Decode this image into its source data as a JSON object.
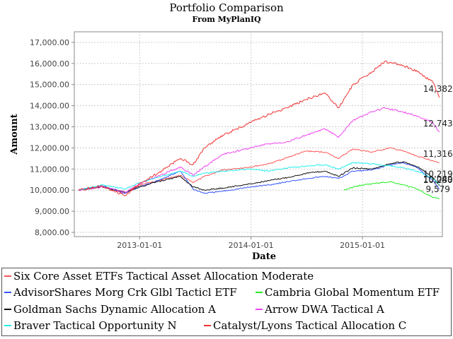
{
  "title": "Portfolio Comparison",
  "subtitle": "From MyPlanIQ",
  "chart_data": {
    "type": "line",
    "title": "Portfolio Comparison",
    "subtitle": "From MyPlanIQ",
    "xlabel": "Date",
    "ylabel": "Amount",
    "ylim": [
      7800,
      17500
    ],
    "xlim": [
      "2012-06-01",
      "2015-09-20"
    ],
    "x_ticks": [
      "2013-01-01",
      "2014-01-01",
      "2015-01-01"
    ],
    "y_ticks": [
      "8,000.00",
      "9,000.00",
      "10,000.00",
      "11,000.00",
      "12,000.00",
      "13,000.00",
      "14,000.00",
      "15,000.00",
      "16,000.00",
      "17,000.00"
    ],
    "grid": true,
    "legend_position": "bottom",
    "series": [
      {
        "name": "Six Core Asset ETFs Tactical Asset Allocation Moderate",
        "color": "#ff5555",
        "end_label": "11,316",
        "points": [
          [
            "2012-06-15",
            10000
          ],
          [
            "2012-09-01",
            10150
          ],
          [
            "2012-11-15",
            9850
          ],
          [
            "2013-01-01",
            10250
          ],
          [
            "2013-03-01",
            10450
          ],
          [
            "2013-05-15",
            10700
          ],
          [
            "2013-06-25",
            10350
          ],
          [
            "2013-08-01",
            10650
          ],
          [
            "2013-10-01",
            10950
          ],
          [
            "2013-12-31",
            11100
          ],
          [
            "2014-03-01",
            11250
          ],
          [
            "2014-05-01",
            11550
          ],
          [
            "2014-07-01",
            11850
          ],
          [
            "2014-09-01",
            11800
          ],
          [
            "2014-10-15",
            11500
          ],
          [
            "2014-12-01",
            11950
          ],
          [
            "2015-02-01",
            11800
          ],
          [
            "2015-04-01",
            12000
          ],
          [
            "2015-05-15",
            11850
          ],
          [
            "2015-07-01",
            11600
          ],
          [
            "2015-08-20",
            11400
          ],
          [
            "2015-09-10",
            11316
          ]
        ]
      },
      {
        "name": "AdvisorShares Morg Crk Glbl Tacticl ETF",
        "color": "#3355ff",
        "end_label": "10,049",
        "points": [
          [
            "2012-06-15",
            10000
          ],
          [
            "2012-09-01",
            10200
          ],
          [
            "2012-11-15",
            9850
          ],
          [
            "2013-01-01",
            10150
          ],
          [
            "2013-03-01",
            10450
          ],
          [
            "2013-05-15",
            10900
          ],
          [
            "2013-06-25",
            10050
          ],
          [
            "2013-08-01",
            9850
          ],
          [
            "2013-10-01",
            9950
          ],
          [
            "2013-12-31",
            10150
          ],
          [
            "2014-03-01",
            10250
          ],
          [
            "2014-05-01",
            10400
          ],
          [
            "2014-07-01",
            10550
          ],
          [
            "2014-09-01",
            10650
          ],
          [
            "2014-10-15",
            10550
          ],
          [
            "2014-12-01",
            10900
          ],
          [
            "2015-02-01",
            10950
          ],
          [
            "2015-04-01",
            11200
          ],
          [
            "2015-05-15",
            11300
          ],
          [
            "2015-07-01",
            11050
          ],
          [
            "2015-08-20",
            10450
          ],
          [
            "2015-09-10",
            10049
          ]
        ]
      },
      {
        "name": "Cambria Global Momentum ETF",
        "color": "#22ee22",
        "end_label": "9,579",
        "points": [
          [
            "2014-11-01",
            10000
          ],
          [
            "2014-12-15",
            10200
          ],
          [
            "2015-02-01",
            10300
          ],
          [
            "2015-04-01",
            10400
          ],
          [
            "2015-05-15",
            10250
          ],
          [
            "2015-07-01",
            10050
          ],
          [
            "2015-08-20",
            9650
          ],
          [
            "2015-09-10",
            9579
          ]
        ]
      },
      {
        "name": "Goldman Sachs Dynamic Allocation A",
        "color": "#111111",
        "end_label": "10,219",
        "points": [
          [
            "2012-06-15",
            10000
          ],
          [
            "2012-09-01",
            10150
          ],
          [
            "2012-11-15",
            9900
          ],
          [
            "2013-01-01",
            10150
          ],
          [
            "2013-03-01",
            10400
          ],
          [
            "2013-05-15",
            10650
          ],
          [
            "2013-06-25",
            10150
          ],
          [
            "2013-08-01",
            10000
          ],
          [
            "2013-10-01",
            10100
          ],
          [
            "2013-12-31",
            10300
          ],
          [
            "2014-03-01",
            10450
          ],
          [
            "2014-05-01",
            10600
          ],
          [
            "2014-07-01",
            10800
          ],
          [
            "2014-09-01",
            10900
          ],
          [
            "2014-10-15",
            10650
          ],
          [
            "2014-12-01",
            11050
          ],
          [
            "2015-02-01",
            11000
          ],
          [
            "2015-04-01",
            11250
          ],
          [
            "2015-05-15",
            11350
          ],
          [
            "2015-07-01",
            11100
          ],
          [
            "2015-08-20",
            10600
          ],
          [
            "2015-09-10",
            10219
          ]
        ]
      },
      {
        "name": "Arrow DWA Tactical A",
        "color": "#ee44ee",
        "end_label": "12,743",
        "points": [
          [
            "2012-06-15",
            10000
          ],
          [
            "2012-09-01",
            10150
          ],
          [
            "2012-11-15",
            9900
          ],
          [
            "2013-01-01",
            10300
          ],
          [
            "2013-03-01",
            10650
          ],
          [
            "2013-05-15",
            11100
          ],
          [
            "2013-06-25",
            10700
          ],
          [
            "2013-08-01",
            11100
          ],
          [
            "2013-10-01",
            11700
          ],
          [
            "2013-12-31",
            12000
          ],
          [
            "2014-03-01",
            12200
          ],
          [
            "2014-05-01",
            12300
          ],
          [
            "2014-07-01",
            12600
          ],
          [
            "2014-09-01",
            12900
          ],
          [
            "2014-10-15",
            12500
          ],
          [
            "2014-12-01",
            13300
          ],
          [
            "2015-02-01",
            13700
          ],
          [
            "2015-03-15",
            13900
          ],
          [
            "2015-05-15",
            13700
          ],
          [
            "2015-07-01",
            13500
          ],
          [
            "2015-08-20",
            13200
          ],
          [
            "2015-09-10",
            12743
          ]
        ]
      },
      {
        "name": "Braver Tactical Opportunity N",
        "color": "#22eeee",
        "end_label": "10,280",
        "points": [
          [
            "2012-06-15",
            10000
          ],
          [
            "2012-09-01",
            10250
          ],
          [
            "2012-11-15",
            10050
          ],
          [
            "2013-01-01",
            10350
          ],
          [
            "2013-03-01",
            10600
          ],
          [
            "2013-05-15",
            10900
          ],
          [
            "2013-06-25",
            10650
          ],
          [
            "2013-08-01",
            10800
          ],
          [
            "2013-10-01",
            10900
          ],
          [
            "2013-12-31",
            11000
          ],
          [
            "2014-03-01",
            10900
          ],
          [
            "2014-05-01",
            11050
          ],
          [
            "2014-07-01",
            11150
          ],
          [
            "2014-09-01",
            11200
          ],
          [
            "2014-10-15",
            11000
          ],
          [
            "2014-12-01",
            11300
          ],
          [
            "2015-02-01",
            11250
          ],
          [
            "2015-04-01",
            11150
          ],
          [
            "2015-05-15",
            11050
          ],
          [
            "2015-07-01",
            10900
          ],
          [
            "2015-08-20",
            10550
          ],
          [
            "2015-09-10",
            10280
          ]
        ]
      },
      {
        "name": "Catalyst/Lyons Tactical Allocation C",
        "color": "#ee3333",
        "end_label": "14,382",
        "points": [
          [
            "2012-06-15",
            10000
          ],
          [
            "2012-09-01",
            10200
          ],
          [
            "2012-11-15",
            9750
          ],
          [
            "2013-01-01",
            10300
          ],
          [
            "2013-03-01",
            10800
          ],
          [
            "2013-05-15",
            11500
          ],
          [
            "2013-06-25",
            11200
          ],
          [
            "2013-08-01",
            12000
          ],
          [
            "2013-10-01",
            12600
          ],
          [
            "2013-12-31",
            13200
          ],
          [
            "2014-03-01",
            13600
          ],
          [
            "2014-05-01",
            13900
          ],
          [
            "2014-07-01",
            14300
          ],
          [
            "2014-09-01",
            14600
          ],
          [
            "2014-10-15",
            13900
          ],
          [
            "2014-12-01",
            15000
          ],
          [
            "2015-02-01",
            15600
          ],
          [
            "2015-03-15",
            16100
          ],
          [
            "2015-05-15",
            15900
          ],
          [
            "2015-07-01",
            15600
          ],
          [
            "2015-08-20",
            15100
          ],
          [
            "2015-09-10",
            14382
          ]
        ]
      }
    ]
  }
}
